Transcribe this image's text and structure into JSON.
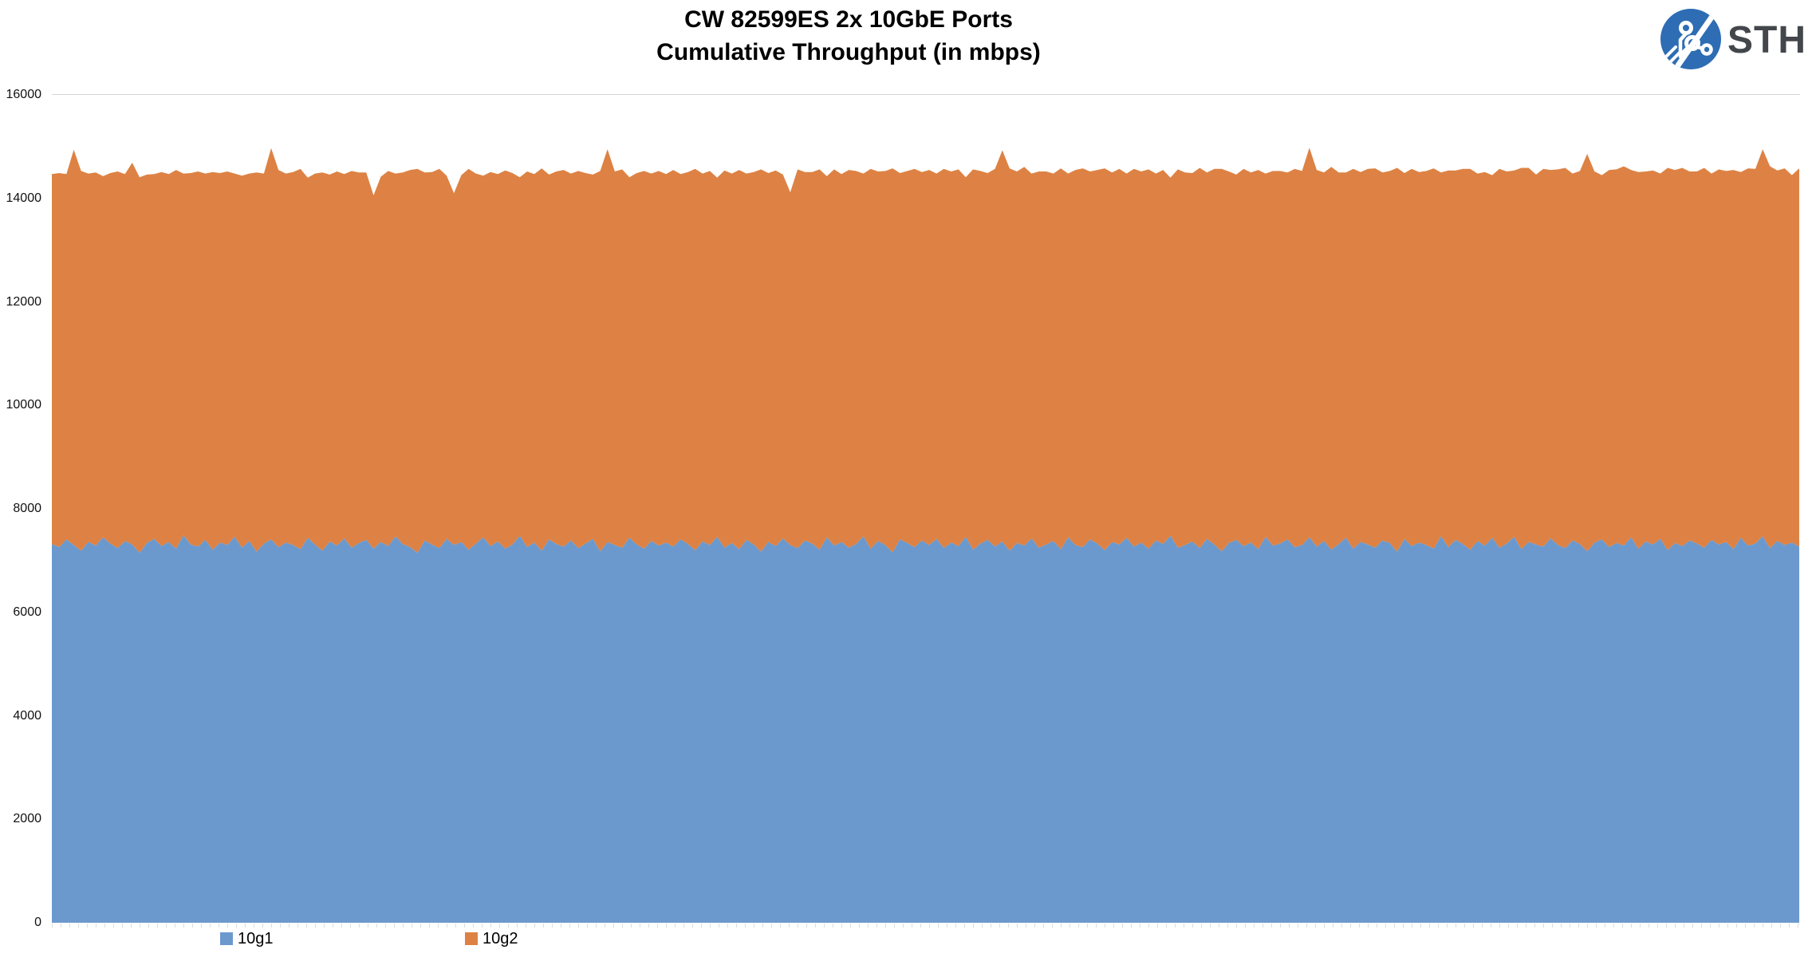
{
  "title": {
    "line1": "CW 82599ES 2x 10GbE Ports",
    "line2": "Cumulative Throughput (in mbps)"
  },
  "logo": {
    "text": "STH",
    "circle_color": "#2e6db4",
    "text_color": "#43474b"
  },
  "chart_data": {
    "type": "area",
    "stacked": true,
    "title": "CW 82599ES 2x 10GbE Ports",
    "subtitle": "Cumulative Throughput (in mbps)",
    "xlabel": "",
    "ylabel": "",
    "ylim": [
      0,
      16000
    ],
    "y_ticks": [
      16000,
      14000,
      12000,
      10000,
      8000,
      6000,
      4000,
      2000,
      0
    ],
    "x_axis_labels": "none",
    "grid": "single light horizontal gridline at 16000 only",
    "legend_position": "bottom-left",
    "series": [
      {
        "name": "10g1",
        "color": "#6b99ce",
        "values": [
          7320,
          7260,
          7410,
          7300,
          7190,
          7360,
          7290,
          7450,
          7330,
          7240,
          7380,
          7310,
          7150,
          7340,
          7420,
          7280,
          7360,
          7230,
          7490,
          7310,
          7270,
          7400,
          7210,
          7350,
          7300,
          7460,
          7250,
          7380,
          7170,
          7330,
          7410,
          7260,
          7350,
          7300,
          7220,
          7440,
          7310,
          7190,
          7370,
          7290,
          7430,
          7250,
          7340,
          7400,
          7230,
          7360,
          7280,
          7470,
          7320,
          7260,
          7150,
          7390,
          7310,
          7240,
          7420,
          7300,
          7360,
          7210,
          7330,
          7450,
          7280,
          7370,
          7230,
          7310,
          7480,
          7260,
          7350,
          7190,
          7410,
          7320,
          7270,
          7390,
          7240,
          7330,
          7420,
          7180,
          7360,
          7300,
          7250,
          7440,
          7310,
          7230,
          7380,
          7290,
          7350,
          7270,
          7410,
          7320,
          7200,
          7370,
          7300,
          7460,
          7250,
          7340,
          7220,
          7400,
          7310,
          7170,
          7360,
          7280,
          7430,
          7300,
          7240,
          7390,
          7330,
          7210,
          7450,
          7290,
          7360,
          7250,
          7320,
          7470,
          7230,
          7380,
          7300,
          7160,
          7410,
          7340,
          7260,
          7390,
          7300,
          7420,
          7240,
          7350,
          7280,
          7460,
          7210,
          7330,
          7400,
          7270,
          7370,
          7190,
          7340,
          7290,
          7430,
          7250,
          7310,
          7380,
          7220,
          7450,
          7300,
          7260,
          7410,
          7330,
          7200,
          7360,
          7310,
          7440,
          7270,
          7350,
          7230,
          7390,
          7320,
          7480,
          7250,
          7300,
          7370,
          7240,
          7420,
          7310,
          7180,
          7340,
          7400,
          7280,
          7350,
          7220,
          7460,
          7290,
          7330,
          7410,
          7260,
          7300,
          7450,
          7270,
          7380,
          7210,
          7320,
          7440,
          7230,
          7360,
          7310,
          7250,
          7390,
          7340,
          7170,
          7420,
          7280,
          7350,
          7300,
          7230,
          7470,
          7260,
          7400,
          7320,
          7210,
          7380,
          7290,
          7440,
          7250,
          7330,
          7460,
          7220,
          7360,
          7310,
          7270,
          7430,
          7300,
          7240,
          7390,
          7320,
          7180,
          7350,
          7410,
          7260,
          7340,
          7290,
          7450,
          7230,
          7370,
          7310,
          7420,
          7200,
          7340,
          7280,
          7390,
          7330,
          7250,
          7400,
          7310,
          7360,
          7220,
          7440,
          7290,
          7330,
          7470,
          7240,
          7380,
          7300,
          7350,
          7270
        ]
      },
      {
        "name": "10g2",
        "color": "#dd8244",
        "values": [
          7150,
          7230,
          7060,
          7640,
          7340,
          7120,
          7210,
          6980,
          7160,
          7280,
          7090,
          7380,
          7260,
          7120,
          7050,
          7230,
          7110,
          7320,
          6990,
          7180,
          7250,
          7080,
          7300,
          7140,
          7220,
          7020,
          7190,
          7100,
          7330,
          7150,
          7560,
          7290,
          7130,
          7210,
          7350,
          6960,
          7170,
          7310,
          7090,
          7230,
          7040,
          7280,
          7160,
          7100,
          6830,
          7060,
          7250,
          7010,
          7180,
          7290,
          7420,
          7110,
          7200,
          7330,
          7020,
          6800,
          7090,
          7360,
          7150,
          6990,
          7230,
          7100,
          7310,
          7180,
          6930,
          7260,
          7120,
          7390,
          7050,
          7200,
          7280,
          7090,
          7290,
          7160,
          7040,
          7350,
          7590,
          7220,
          7310,
          6970,
          7180,
          7300,
          7100,
          7240,
          7120,
          7280,
          7060,
          7190,
          7370,
          7110,
          7230,
          6940,
          7290,
          7140,
          7330,
          7080,
          7200,
          7390,
          7130,
          7260,
          7030,
          6820,
          7320,
          7120,
          7180,
          7350,
          6980,
          7270,
          7110,
          7300,
          7210,
          7010,
          7340,
          7140,
          7230,
          7420,
          7080,
          7190,
          7310,
          7120,
          7250,
          7060,
          7330,
          7170,
          7280,
          6950,
          7350,
          7200,
          7090,
          7300,
          7560,
          7390,
          7180,
          7320,
          7050,
          7270,
          7210,
          7100,
          7360,
          7030,
          7250,
          7320,
          7110,
          7220,
          7380,
          7140,
          7260,
          7040,
          7300,
          7170,
          7330,
          7090,
          7230,
          6920,
          7310,
          7200,
          7120,
          7350,
          7080,
          7260,
          7390,
          7180,
          7060,
          7290,
          7150,
          7330,
          7020,
          7240,
          7200,
          7090,
          7310,
          7230,
          7530,
          7280,
          7120,
          7400,
          7180,
          7060,
          7340,
          7150,
          7260,
          7330,
          7110,
          7190,
          7420,
          7070,
          7290,
          7160,
          7230,
          7350,
          7030,
          7280,
          7140,
          7250,
          7360,
          7100,
          7220,
          7010,
          7320,
          7190,
          7080,
          7370,
          7230,
          7150,
          7300,
          7120,
          7260,
          7350,
          7090,
          7210,
          7680,
          7170,
          7040,
          7290,
          7220,
          7330,
          7100,
          7280,
          7150,
          7230,
          7060,
          7390,
          7210,
          7310,
          7130,
          7190,
          7340,
          7080,
          7250,
          7170,
          7330,
          7070,
          7290,
          7240,
          7480,
          7380,
          7160,
          7280,
          7100,
          7310
        ]
      }
    ]
  }
}
